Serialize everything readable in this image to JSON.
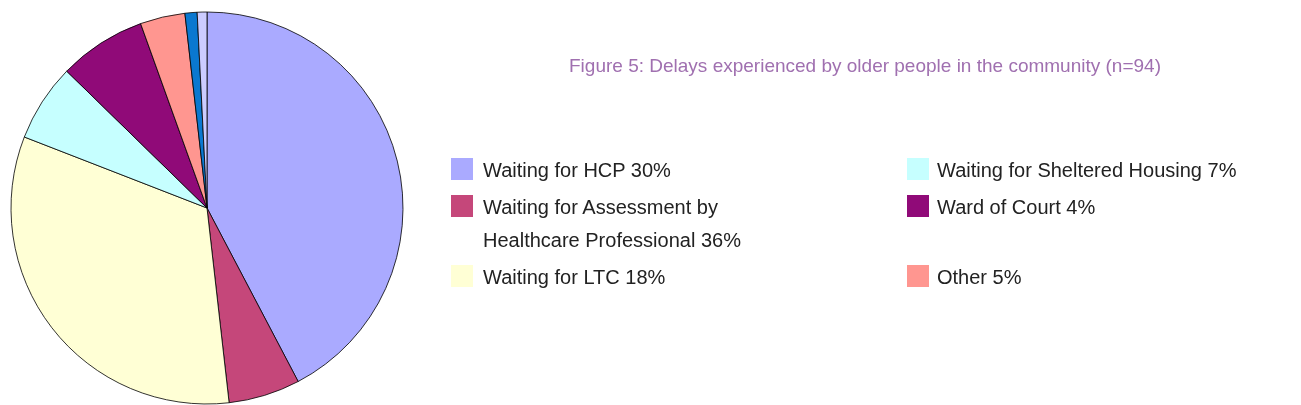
{
  "chart_data": {
    "type": "pie",
    "title": "Figure 5: Delays experienced by older people in the community (n=94)",
    "categories": [
      "Waiting for HCP 30%",
      "Waiting for Assessment by Healthcare Professional 36%",
      "Waiting for LTC 18%",
      "Waiting for Sheltered Housing 7%",
      "Ward of Court 4%",
      "Other 5%",
      null,
      null
    ],
    "values": [
      42.3,
      5.9,
      32.7,
      6.4,
      7.2,
      3.7,
      1.0,
      0.8
    ],
    "colors": [
      "#aaaaff",
      "#c5477a",
      "#ffffd5",
      "#c6ffff",
      "#900a78",
      "#ff9690",
      "#0a78d0",
      "#ccccff"
    ],
    "legend": "right"
  }
}
